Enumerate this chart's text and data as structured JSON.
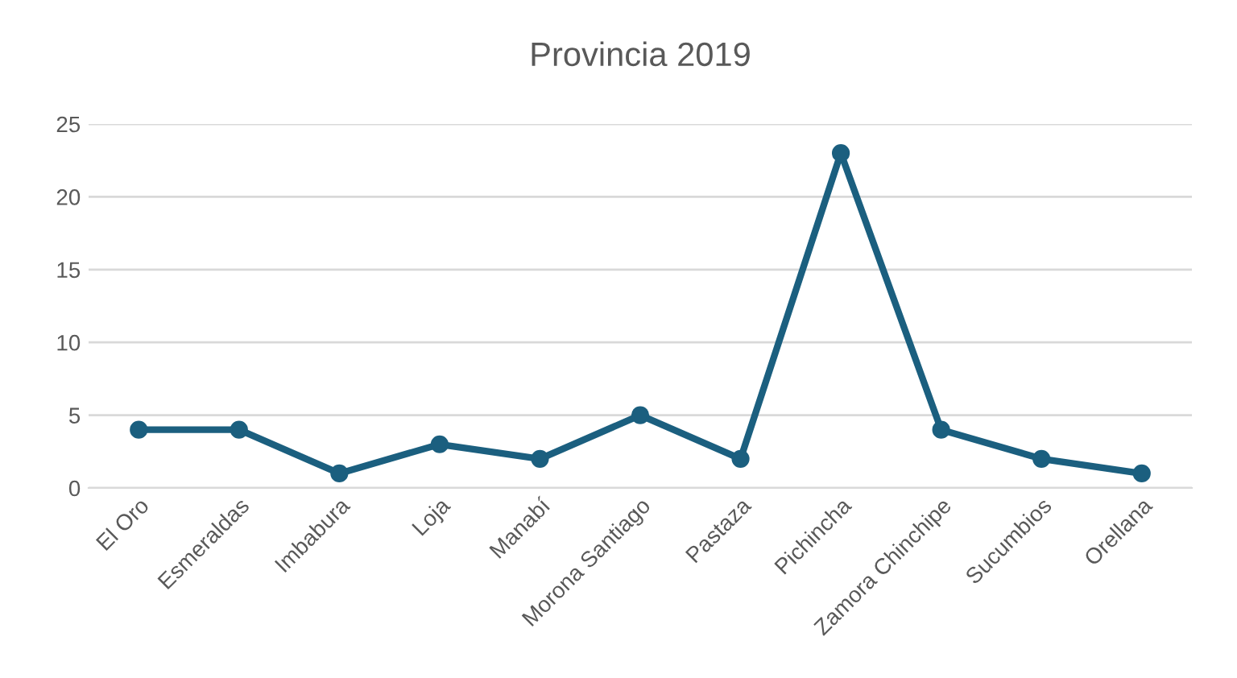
{
  "chart_data": {
    "type": "line",
    "title": "Provincia 2019",
    "categories": [
      "El Oro",
      "Esmeraldas",
      "Imbabura",
      "Loja",
      "Manabí",
      "Morona Santiago",
      "Pastaza",
      "Pichincha",
      "Zamora Chinchipe",
      "Sucumbios",
      "Orellana"
    ],
    "series": [
      {
        "color": "#1b5f7f",
        "values": [
          4,
          4,
          1,
          3,
          2,
          5,
          2,
          23,
          4,
          2,
          1
        ]
      }
    ],
    "ylim": [
      0,
      25
    ],
    "yticks": [
      0,
      5,
      10,
      15,
      20,
      25
    ],
    "grid": "y",
    "legend": false,
    "marker": "circle",
    "line_style": "solid"
  }
}
